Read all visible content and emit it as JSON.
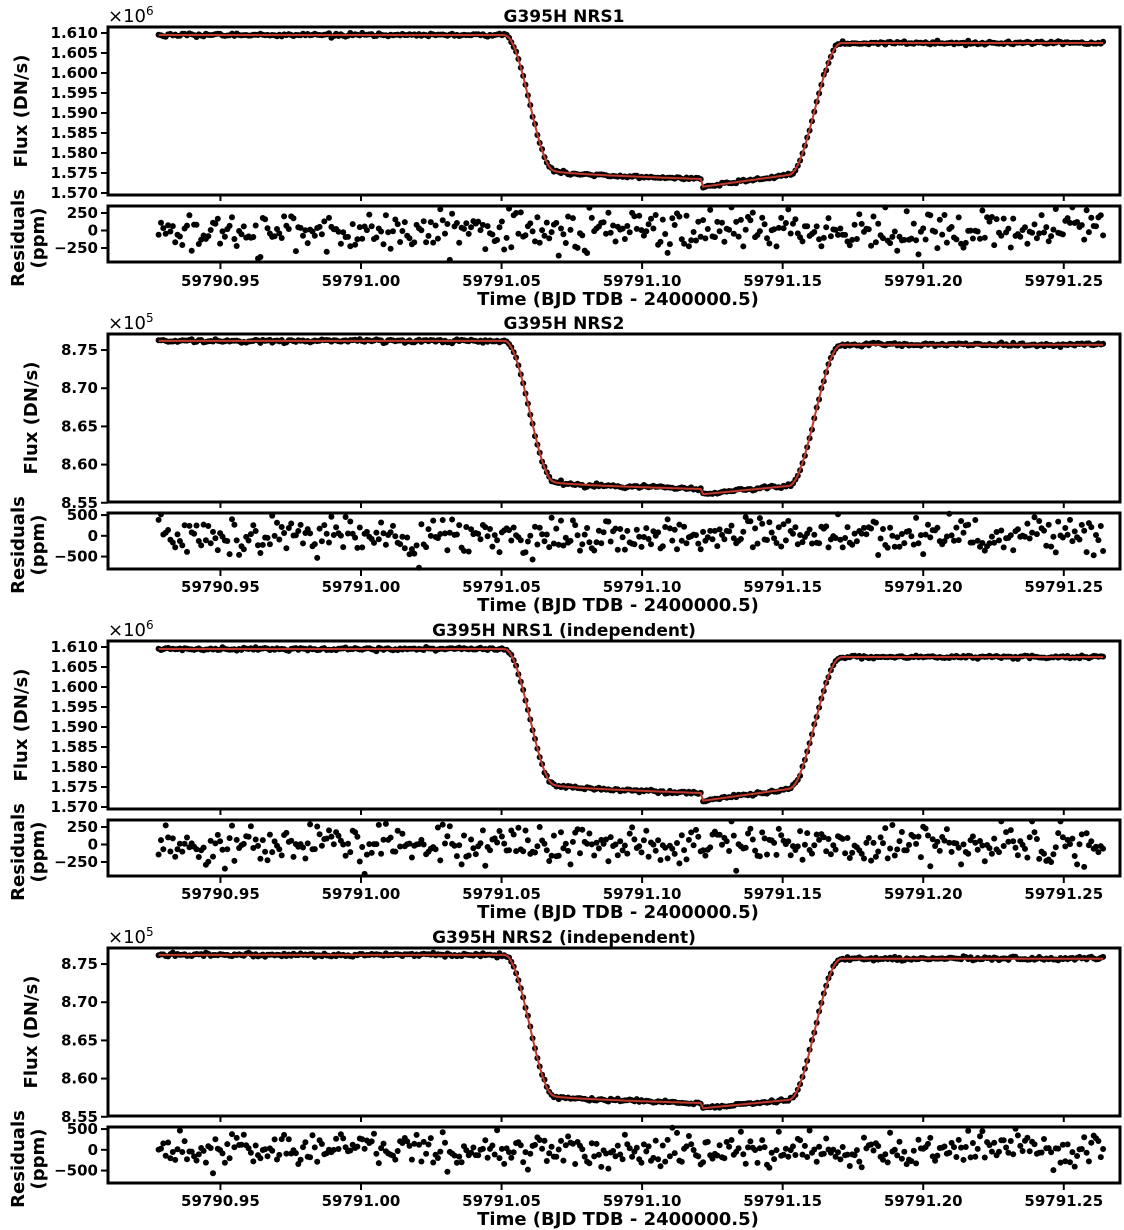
{
  "chart_data": [
    {
      "type": "scatter",
      "title": "G395H NRS1",
      "multiplier": {
        "base": "×10",
        "exp": "6"
      },
      "ylabel": "Flux (DN/s)",
      "ylim": [
        1.5695,
        1.6115
      ],
      "yticks": [
        1.57,
        1.575,
        1.58,
        1.585,
        1.59,
        1.595,
        1.6,
        1.605,
        1.61
      ],
      "ytick_labels": [
        "1.570",
        "1.575",
        "1.580",
        "1.585",
        "1.590",
        "1.595",
        "1.600",
        "1.605",
        "1.610"
      ],
      "xlim": [
        59790.91,
        59791.27
      ],
      "light_curve": {
        "out_of_transit": 1.6095,
        "out_of_transit_end": 1.6075,
        "in_transit_start": 1.5755,
        "in_transit_mid": 1.5735,
        "in_transit_post": 1.5715,
        "in_transit_end": 1.5745,
        "t1": 59791.051,
        "t2": 59791.069,
        "t_mid": 59791.121,
        "t3": 59791.152,
        "t4": 59791.171,
        "noise": 0.0002
      },
      "residuals": {
        "ylabel": "Residuals (ppm)",
        "ylim": [
          -450,
          350
        ],
        "yticks": [
          -250,
          0,
          250
        ],
        "ytick_labels": [
          "−250",
          "0",
          "250"
        ],
        "scatter_sigma": 140
      },
      "xticks": [
        59790.95,
        59791.0,
        59791.05,
        59791.1,
        59791.15,
        59791.2,
        59791.25
      ],
      "xtick_labels": [
        "59790.95",
        "59791.00",
        "59791.05",
        "59791.10",
        "59791.15",
        "59791.20",
        "59791.25"
      ],
      "xlabel": "Time (BJD TDB - 2400000.5)",
      "t_start": 59790.928,
      "t_end": 59791.264,
      "n_points": 400
    },
    {
      "type": "scatter",
      "title": "G395H NRS2",
      "multiplier": {
        "base": "×10",
        "exp": "5"
      },
      "ylabel": "Flux (DN/s)",
      "ylim": [
        8.551,
        8.771
      ],
      "yticks": [
        8.55,
        8.6,
        8.65,
        8.7,
        8.75
      ],
      "ytick_labels": [
        "8.55",
        "8.60",
        "8.65",
        "8.70",
        "8.75"
      ],
      "xlim": [
        59790.91,
        59791.27
      ],
      "light_curve": {
        "out_of_transit": 8.762,
        "out_of_transit_end": 8.757,
        "in_transit_start": 8.577,
        "in_transit_mid": 8.568,
        "in_transit_post": 8.561,
        "in_transit_end": 8.572,
        "t1": 59791.051,
        "t2": 59791.069,
        "t_mid": 59791.121,
        "t3": 59791.152,
        "t4": 59791.171,
        "noise": 0.0012
      },
      "residuals": {
        "ylabel": "Residuals (ppm)",
        "ylim": [
          -800,
          550
        ],
        "yticks": [
          -500,
          0,
          500
        ],
        "ytick_labels": [
          "−500",
          "0",
          "500"
        ],
        "scatter_sigma": 220
      },
      "xticks": [
        59790.95,
        59791.0,
        59791.05,
        59791.1,
        59791.15,
        59791.2,
        59791.25
      ],
      "xtick_labels": [
        "59790.95",
        "59791.00",
        "59791.05",
        "59791.10",
        "59791.15",
        "59791.20",
        "59791.25"
      ],
      "xlabel": "Time (BJD TDB - 2400000.5)",
      "t_start": 59790.928,
      "t_end": 59791.264,
      "n_points": 400
    },
    {
      "type": "scatter",
      "title": "G395H NRS1 (independent)",
      "multiplier": {
        "base": "×10",
        "exp": "6"
      },
      "ylabel": "Flux (DN/s)",
      "ylim": [
        1.5695,
        1.6115
      ],
      "yticks": [
        1.57,
        1.575,
        1.58,
        1.585,
        1.59,
        1.595,
        1.6,
        1.605,
        1.61
      ],
      "ytick_labels": [
        "1.570",
        "1.575",
        "1.580",
        "1.585",
        "1.590",
        "1.595",
        "1.600",
        "1.605",
        "1.610"
      ],
      "xlim": [
        59790.91,
        59791.27
      ],
      "light_curve": {
        "out_of_transit": 1.6095,
        "out_of_transit_end": 1.6075,
        "in_transit_start": 1.5755,
        "in_transit_mid": 1.5735,
        "in_transit_post": 1.5715,
        "in_transit_end": 1.5745,
        "t1": 59791.051,
        "t2": 59791.069,
        "t_mid": 59791.121,
        "t3": 59791.152,
        "t4": 59791.171,
        "noise": 0.0002
      },
      "residuals": {
        "ylabel": "Residuals (ppm)",
        "ylim": [
          -450,
          350
        ],
        "yticks": [
          -250,
          0,
          250
        ],
        "ytick_labels": [
          "−250",
          "0",
          "250"
        ],
        "scatter_sigma": 140
      },
      "xticks": [
        59790.95,
        59791.0,
        59791.05,
        59791.1,
        59791.15,
        59791.2,
        59791.25
      ],
      "xtick_labels": [
        "59790.95",
        "59791.00",
        "59791.05",
        "59791.10",
        "59791.15",
        "59791.20",
        "59791.25"
      ],
      "xlabel": "Time (BJD TDB - 2400000.5)",
      "t_start": 59790.928,
      "t_end": 59791.264,
      "n_points": 400
    },
    {
      "type": "scatter",
      "title": "G395H NRS2 (independent)",
      "multiplier": {
        "base": "×10",
        "exp": "5"
      },
      "ylabel": "Flux (DN/s)",
      "ylim": [
        8.551,
        8.771
      ],
      "yticks": [
        8.55,
        8.6,
        8.65,
        8.7,
        8.75
      ],
      "ytick_labels": [
        "8.55",
        "8.60",
        "8.65",
        "8.70",
        "8.75"
      ],
      "xlim": [
        59790.91,
        59791.27
      ],
      "light_curve": {
        "out_of_transit": 8.762,
        "out_of_transit_end": 8.757,
        "in_transit_start": 8.577,
        "in_transit_mid": 8.568,
        "in_transit_post": 8.561,
        "in_transit_end": 8.572,
        "t1": 59791.051,
        "t2": 59791.069,
        "t_mid": 59791.121,
        "t3": 59791.152,
        "t4": 59791.171,
        "noise": 0.0012
      },
      "residuals": {
        "ylabel": "Residuals (ppm)",
        "ylim": [
          -800,
          550
        ],
        "yticks": [
          -500,
          0,
          500
        ],
        "ytick_labels": [
          "−500",
          "0",
          "500"
        ],
        "scatter_sigma": 220
      },
      "xticks": [
        59790.95,
        59791.0,
        59791.05,
        59791.1,
        59791.15,
        59791.2,
        59791.25
      ],
      "xtick_labels": [
        "59790.95",
        "59791.00",
        "59791.05",
        "59791.10",
        "59791.15",
        "59791.20",
        "59791.25"
      ],
      "xlabel": "Time (BJD TDB - 2400000.5)",
      "t_start": 59790.928,
      "t_end": 59791.264,
      "n_points": 400
    }
  ],
  "colors": {
    "points": "#000000",
    "model": "#c0392b",
    "frame": "#000000"
  }
}
